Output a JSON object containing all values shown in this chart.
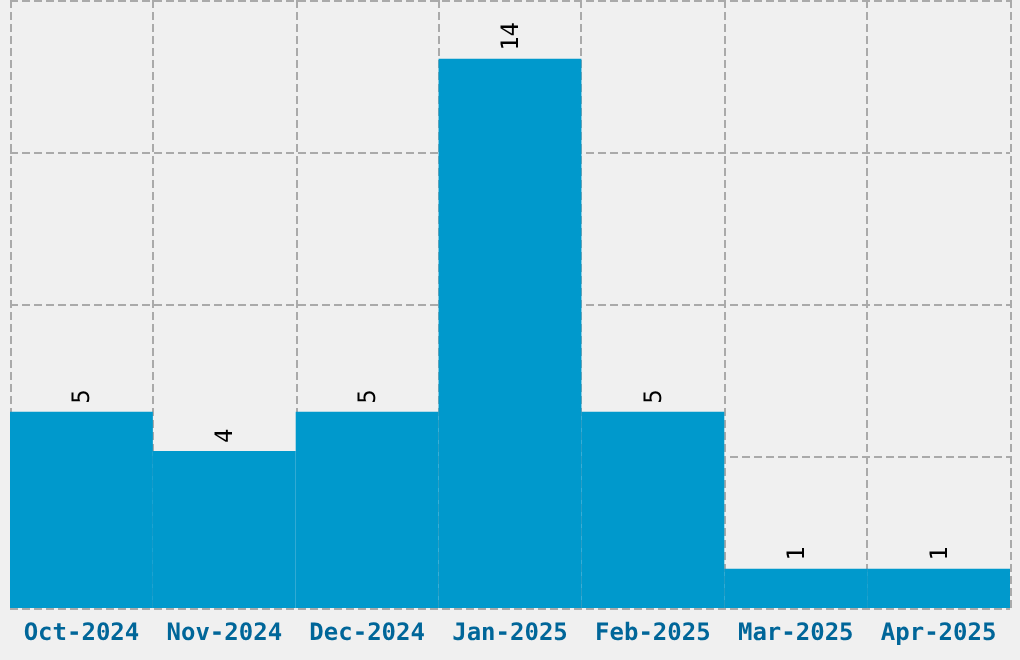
{
  "chart_data": {
    "type": "bar",
    "categories": [
      "Oct-2024",
      "Nov-2024",
      "Dec-2024",
      "Jan-2025",
      "Feb-2025",
      "Mar-2025",
      "Apr-2025"
    ],
    "values": [
      5,
      4,
      5,
      14,
      5,
      1,
      1
    ],
    "color": "#0099cc",
    "ylim": [
      0,
      15.5
    ],
    "yticks": [
      {
        "value": 0,
        "label": null
      },
      {
        "value": 3.875,
        "label": null
      },
      {
        "value": 7.75,
        "label": null
      },
      {
        "value": 11.625,
        "label": null
      },
      {
        "value": 15.5,
        "label": null
      }
    ],
    "tick_labels": "x",
    "data_labels": true,
    "grid": true
  }
}
